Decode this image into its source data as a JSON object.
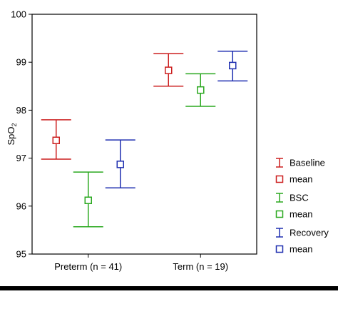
{
  "chart_data": {
    "type": "errorbar",
    "ylabel": "SpO",
    "ylabel_subscript": "2",
    "ylim": [
      95,
      100
    ],
    "yticks": [
      "95",
      "96",
      "97",
      "98",
      "99",
      "100"
    ],
    "categories": [
      "Preterm (n = 41)",
      "Term (n = 19)"
    ],
    "grid": false,
    "legend_position": "right",
    "series": [
      {
        "name": "Baseline",
        "color": "#cc1f1f",
        "mean": [
          97.37,
          98.83
        ],
        "low": [
          96.98,
          98.5
        ],
        "high": [
          97.8,
          99.18
        ]
      },
      {
        "name": "BSC",
        "color": "#2aa81f",
        "mean": [
          96.12,
          98.42
        ],
        "low": [
          95.57,
          98.08
        ],
        "high": [
          96.71,
          98.76
        ]
      },
      {
        "name": "Recovery",
        "color": "#1f2fb0",
        "mean": [
          96.87,
          98.93
        ],
        "low": [
          96.38,
          98.61
        ],
        "high": [
          97.38,
          99.23
        ]
      }
    ],
    "legend": [
      {
        "label": "Baseline",
        "marker": "errorbar",
        "series": 0
      },
      {
        "label": "mean",
        "marker": "square",
        "series": 0
      },
      {
        "label": "BSC",
        "marker": "errorbar",
        "series": 1
      },
      {
        "label": "mean",
        "marker": "square",
        "series": 1
      },
      {
        "label": "Recovery",
        "marker": "errorbar",
        "series": 2
      },
      {
        "label": "mean",
        "marker": "square",
        "series": 2
      }
    ]
  }
}
